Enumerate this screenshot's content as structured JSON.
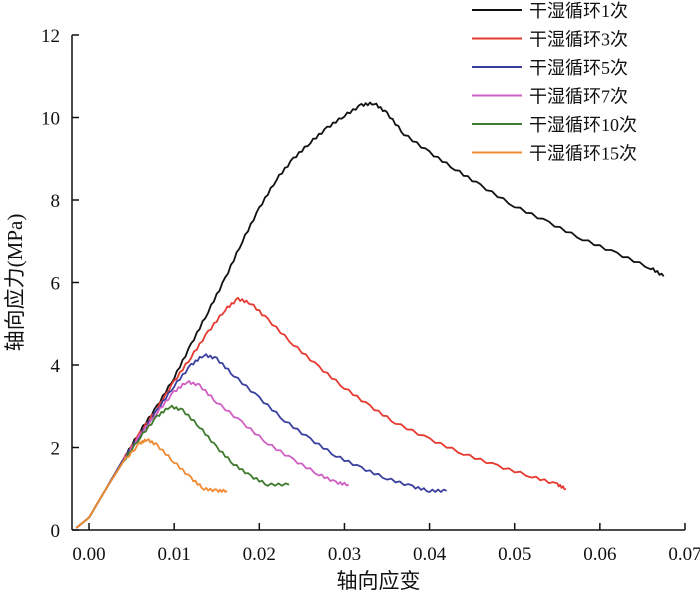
{
  "chart_data": {
    "type": "line",
    "title": "",
    "xlabel": "轴向应变",
    "ylabel": "轴向应力(MPa)",
    "xlim": [
      -0.002,
      0.07
    ],
    "ylim": [
      0,
      12
    ],
    "xticks": [
      0.0,
      0.01,
      0.02,
      0.03,
      0.04,
      0.05,
      0.06,
      0.07
    ],
    "xtick_labels": [
      "0.00",
      "0.01",
      "0.02",
      "0.03",
      "0.04",
      "0.05",
      "0.06",
      "0.07"
    ],
    "yticks": [
      0,
      2,
      4,
      6,
      8,
      10,
      12
    ],
    "ytick_labels": [
      "0",
      "2",
      "4",
      "6",
      "8",
      "10",
      "12"
    ],
    "grid": false,
    "legend_position": "top-right",
    "series": [
      {
        "name": "干湿循环1次",
        "color": "#111111",
        "points": [
          [
            -0.0015,
            0.05
          ],
          [
            0.0,
            0.3
          ],
          [
            0.002,
            1.0
          ],
          [
            0.004,
            1.7
          ],
          [
            0.006,
            2.4
          ],
          [
            0.008,
            3.0
          ],
          [
            0.01,
            3.7
          ],
          [
            0.012,
            4.5
          ],
          [
            0.014,
            5.3
          ],
          [
            0.016,
            6.1
          ],
          [
            0.018,
            7.0
          ],
          [
            0.02,
            7.8
          ],
          [
            0.022,
            8.5
          ],
          [
            0.024,
            9.0
          ],
          [
            0.026,
            9.4
          ],
          [
            0.028,
            9.75
          ],
          [
            0.03,
            10.05
          ],
          [
            0.032,
            10.3
          ],
          [
            0.0335,
            10.35
          ],
          [
            0.035,
            10.1
          ],
          [
            0.037,
            9.6
          ],
          [
            0.04,
            9.15
          ],
          [
            0.043,
            8.75
          ],
          [
            0.046,
            8.35
          ],
          [
            0.05,
            7.85
          ],
          [
            0.054,
            7.45
          ],
          [
            0.058,
            7.05
          ],
          [
            0.062,
            6.7
          ],
          [
            0.066,
            6.35
          ],
          [
            0.0675,
            6.15
          ]
        ]
      },
      {
        "name": "干湿循环3次",
        "color": "#e53a30",
        "points": [
          [
            -0.0015,
            0.05
          ],
          [
            0.0,
            0.3
          ],
          [
            0.002,
            1.0
          ],
          [
            0.004,
            1.7
          ],
          [
            0.006,
            2.35
          ],
          [
            0.008,
            2.95
          ],
          [
            0.01,
            3.6
          ],
          [
            0.012,
            4.2
          ],
          [
            0.014,
            4.8
          ],
          [
            0.016,
            5.35
          ],
          [
            0.0175,
            5.6
          ],
          [
            0.019,
            5.5
          ],
          [
            0.021,
            5.1
          ],
          [
            0.024,
            4.5
          ],
          [
            0.027,
            3.95
          ],
          [
            0.03,
            3.45
          ],
          [
            0.033,
            3.0
          ],
          [
            0.036,
            2.6
          ],
          [
            0.04,
            2.2
          ],
          [
            0.044,
            1.85
          ],
          [
            0.048,
            1.55
          ],
          [
            0.052,
            1.3
          ],
          [
            0.055,
            1.1
          ],
          [
            0.056,
            1.0
          ]
        ]
      },
      {
        "name": "干湿循环5次",
        "color": "#3b3f9e",
        "points": [
          [
            -0.0015,
            0.05
          ],
          [
            0.0,
            0.3
          ],
          [
            0.002,
            1.0
          ],
          [
            0.004,
            1.7
          ],
          [
            0.006,
            2.3
          ],
          [
            0.008,
            2.9
          ],
          [
            0.01,
            3.5
          ],
          [
            0.012,
            4.0
          ],
          [
            0.0135,
            4.25
          ],
          [
            0.015,
            4.15
          ],
          [
            0.017,
            3.75
          ],
          [
            0.02,
            3.2
          ],
          [
            0.023,
            2.65
          ],
          [
            0.026,
            2.2
          ],
          [
            0.029,
            1.8
          ],
          [
            0.032,
            1.5
          ],
          [
            0.035,
            1.25
          ],
          [
            0.038,
            1.05
          ],
          [
            0.04,
            0.95
          ],
          [
            0.042,
            0.95
          ]
        ]
      },
      {
        "name": "干湿循环7次",
        "color": "#d05fc4",
        "points": [
          [
            -0.0015,
            0.05
          ],
          [
            0.0,
            0.3
          ],
          [
            0.002,
            1.0
          ],
          [
            0.004,
            1.65
          ],
          [
            0.006,
            2.3
          ],
          [
            0.008,
            2.85
          ],
          [
            0.01,
            3.35
          ],
          [
            0.0115,
            3.6
          ],
          [
            0.013,
            3.5
          ],
          [
            0.015,
            3.1
          ],
          [
            0.018,
            2.6
          ],
          [
            0.021,
            2.1
          ],
          [
            0.024,
            1.7
          ],
          [
            0.027,
            1.35
          ],
          [
            0.029,
            1.15
          ],
          [
            0.0305,
            1.1
          ]
        ]
      },
      {
        "name": "干湿循环10次",
        "color": "#3f7a2e",
        "points": [
          [
            -0.0015,
            0.05
          ],
          [
            0.0,
            0.3
          ],
          [
            0.002,
            1.0
          ],
          [
            0.004,
            1.65
          ],
          [
            0.006,
            2.25
          ],
          [
            0.008,
            2.75
          ],
          [
            0.0095,
            3.0
          ],
          [
            0.011,
            2.9
          ],
          [
            0.013,
            2.5
          ],
          [
            0.015,
            2.0
          ],
          [
            0.017,
            1.6
          ],
          [
            0.019,
            1.3
          ],
          [
            0.021,
            1.1
          ],
          [
            0.0235,
            1.1
          ]
        ]
      },
      {
        "name": "干湿循环15次",
        "color": "#f08a30",
        "points": [
          [
            -0.0015,
            0.05
          ],
          [
            0.0,
            0.3
          ],
          [
            0.002,
            1.0
          ],
          [
            0.004,
            1.65
          ],
          [
            0.006,
            2.1
          ],
          [
            0.0068,
            2.2
          ],
          [
            0.008,
            2.05
          ],
          [
            0.01,
            1.65
          ],
          [
            0.012,
            1.25
          ],
          [
            0.0135,
            1.0
          ],
          [
            0.015,
            0.95
          ],
          [
            0.0162,
            0.95
          ]
        ]
      }
    ]
  }
}
